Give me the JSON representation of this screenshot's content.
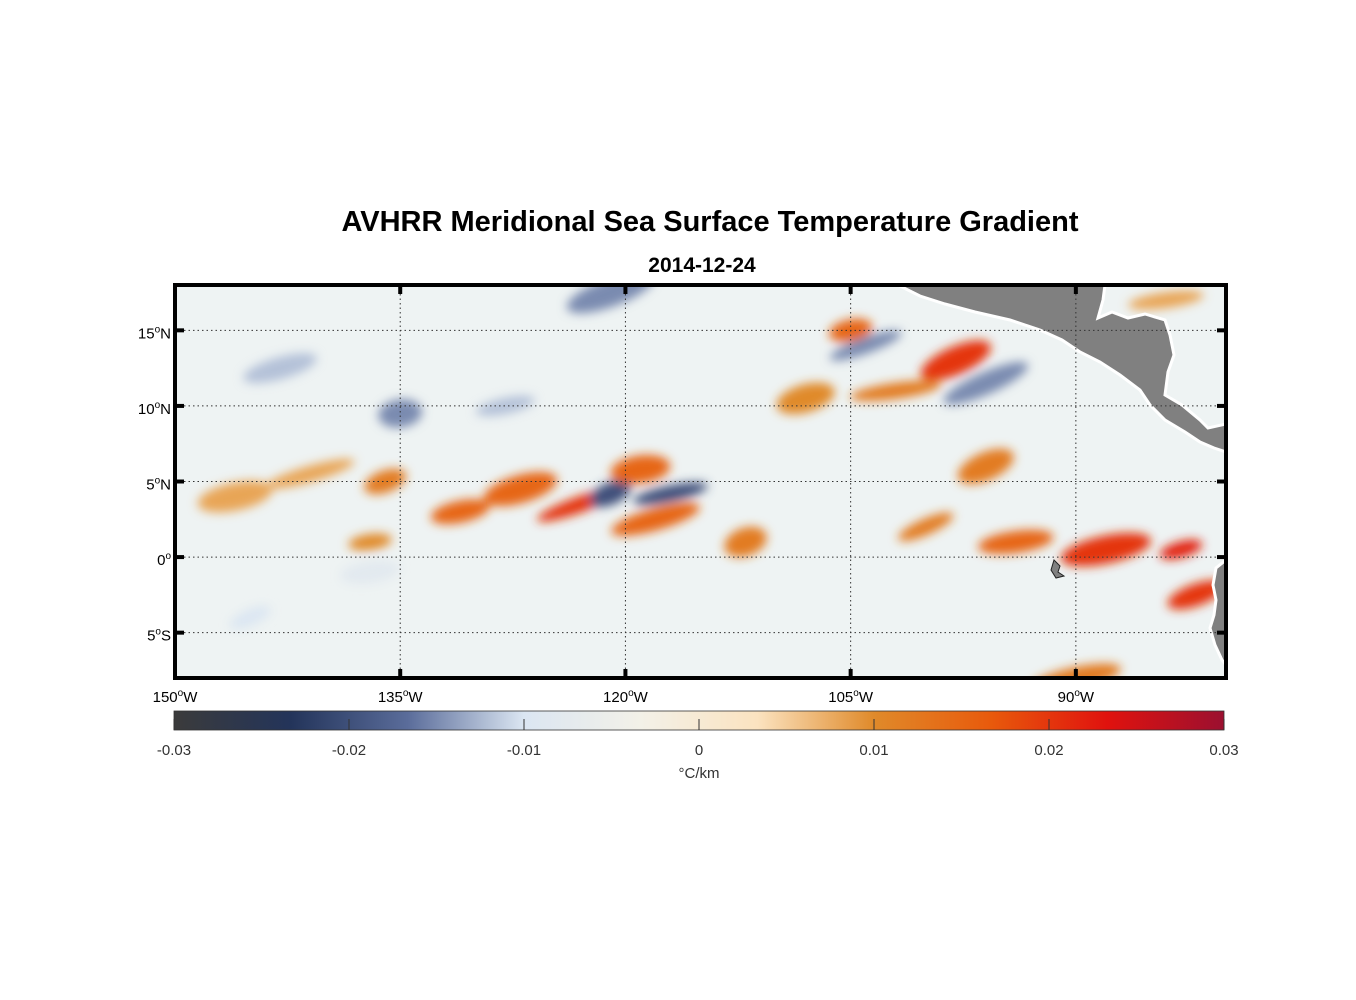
{
  "title": "AVHRR Meridional Sea Surface Temperature Gradient",
  "subtitle": "2014-12-24",
  "map": {
    "lon_range": [
      -150,
      -80
    ],
    "lat_range": [
      -8,
      18
    ],
    "lon_ticks": [
      {
        "value": -150,
        "deg": "150",
        "hemi": "W"
      },
      {
        "value": -135,
        "deg": "135",
        "hemi": "W"
      },
      {
        "value": -120,
        "deg": "120",
        "hemi": "W"
      },
      {
        "value": -105,
        "deg": "105",
        "hemi": "W"
      },
      {
        "value": -90,
        "deg": "90",
        "hemi": "W"
      }
    ],
    "lat_ticks": [
      {
        "value": 15,
        "deg": "15",
        "hemi": "N"
      },
      {
        "value": 10,
        "deg": "10",
        "hemi": "N"
      },
      {
        "value": 5,
        "deg": "5",
        "hemi": "N"
      },
      {
        "value": 0,
        "deg": "0",
        "hemi": ""
      },
      {
        "value": -5,
        "deg": "5",
        "hemi": "S"
      }
    ],
    "grid": "dotted",
    "land_color": "#808080"
  },
  "colorbar": {
    "min": -0.03,
    "max": 0.03,
    "tick_labels": [
      "-0.03",
      "-0.02",
      "-0.01",
      "0",
      "0.01",
      "0.02",
      "0.03"
    ],
    "tick_values": [
      -0.03,
      -0.02,
      -0.01,
      0,
      0.01,
      0.02,
      0.03
    ],
    "units": "°C/km",
    "colors": [
      "#3b3b3b",
      "#23345a",
      "#5a6c9a",
      "#dbe6f2",
      "#f3f1e8",
      "#fbe3c0",
      "#e08a2a",
      "#e85a0c",
      "#e0120e",
      "#9b1030"
    ]
  },
  "chart_data": {
    "type": "heatmap",
    "title": "AVHRR Meridional Sea Surface Temperature Gradient",
    "subtitle": "2014-12-24",
    "xlabel": "",
    "ylabel": "",
    "xlim": [
      -150,
      -80
    ],
    "ylim": [
      -8,
      18
    ],
    "value_range": [
      -0.03,
      0.03
    ],
    "units": "°C/km",
    "features": [
      {
        "lon": -137,
        "lat": 1,
        "value": 0.01
      },
      {
        "lon": -131,
        "lat": 3,
        "value": 0.015
      },
      {
        "lon": -127,
        "lat": 4.5,
        "value": 0.015
      },
      {
        "lon": -123,
        "lat": 3.5,
        "value": 0.02
      },
      {
        "lon": -121,
        "lat": 4.2,
        "value": -0.02
      },
      {
        "lon": -119,
        "lat": 5.8,
        "value": 0.015
      },
      {
        "lon": -117,
        "lat": 4.2,
        "value": -0.02
      },
      {
        "lon": -118,
        "lat": 2.5,
        "value": 0.015
      },
      {
        "lon": -112,
        "lat": 1,
        "value": 0.012
      },
      {
        "lon": -100,
        "lat": 2,
        "value": 0.012
      },
      {
        "lon": -94,
        "lat": 1,
        "value": 0.015
      },
      {
        "lon": -88,
        "lat": 0.5,
        "value": 0.02
      },
      {
        "lon": -83,
        "lat": 0.5,
        "value": 0.022
      },
      {
        "lon": -82,
        "lat": -2.5,
        "value": 0.02
      },
      {
        "lon": -98,
        "lat": 13,
        "value": 0.02
      },
      {
        "lon": -102,
        "lat": 11,
        "value": 0.012
      },
      {
        "lon": -105,
        "lat": 15,
        "value": 0.015
      },
      {
        "lon": -108,
        "lat": 10.5,
        "value": 0.01
      },
      {
        "lon": -104,
        "lat": 14,
        "value": -0.015
      },
      {
        "lon": -96,
        "lat": 11.5,
        "value": -0.015
      },
      {
        "lon": -135,
        "lat": 9.5,
        "value": -0.015
      },
      {
        "lon": -128,
        "lat": 10,
        "value": -0.012
      },
      {
        "lon": -143,
        "lat": 12.5,
        "value": -0.012
      },
      {
        "lon": -121,
        "lat": 17.5,
        "value": -0.015
      },
      {
        "lon": -145,
        "lat": -4,
        "value": -0.01
      },
      {
        "lon": -137,
        "lat": -1,
        "value": -0.008
      },
      {
        "lon": -146,
        "lat": 4,
        "value": 0.008
      },
      {
        "lon": -141,
        "lat": 5.5,
        "value": 0.008
      },
      {
        "lon": -136,
        "lat": 5,
        "value": 0.012
      },
      {
        "lon": -96,
        "lat": 6,
        "value": 0.012
      },
      {
        "lon": -84,
        "lat": 17,
        "value": 0.008
      },
      {
        "lon": -90,
        "lat": -8,
        "value": 0.012
      }
    ]
  }
}
